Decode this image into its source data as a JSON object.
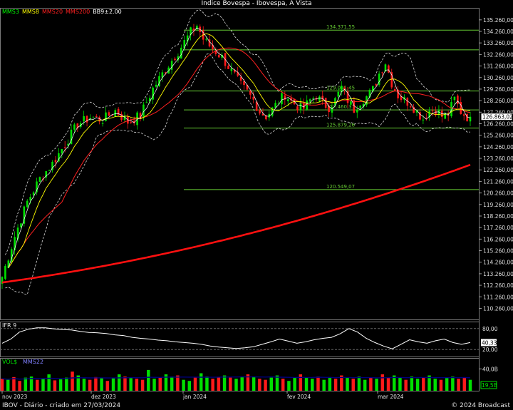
{
  "header": {
    "title": "Indice Bovespa - Ibovespa, A Vista"
  },
  "legend": [
    {
      "label": "MMS3",
      "color": "#00ff00"
    },
    {
      "label": "MMS8",
      "color": "#ffff00"
    },
    {
      "label": "MMS20",
      "color": "#ff2020"
    },
    {
      "label": "MMS200",
      "color": "#ff2020"
    },
    {
      "label": "BB9±2.00",
      "color": "#ffffff"
    }
  ],
  "footer": {
    "left": "IBOV - Diário - criado em 27/03/2024",
    "right": "© 2024 Broadcast"
  },
  "chart_data": {
    "type": "candlestick",
    "price_axis": {
      "ticks": [
        "135.260,00",
        "134.260,00",
        "133.260,00",
        "132.260,00",
        "131.260,00",
        "130.260,00",
        "129.260,00",
        "128.260,00",
        "127.260,00",
        "126.260,00",
        "125.260,00",
        "124.260,00",
        "123.260,00",
        "122.260,00",
        "121.260,00",
        "120.260,00",
        "119.260,00",
        "118.260,00",
        "117.260,00",
        "116.260,00",
        "115.260,00",
        "114.260,00",
        "113.260,00",
        "112.260,00",
        "111.260,00",
        "110.260,00"
      ],
      "range": [
        109300,
        136300
      ],
      "last_price": "126.863,02",
      "last_value": 126863
    },
    "levels": [
      {
        "label": "134.371,55",
        "value": 134371
      },
      {
        "label": "",
        "value": 132660
      },
      {
        "label": "129.091,45",
        "value": 129091
      },
      {
        "label": "127.460,31",
        "value": 127460
      },
      {
        "label": "125.879,26",
        "value": 125879
      },
      {
        "label": "120.549,07",
        "value": 120549
      }
    ],
    "x_labels": [
      "nov 2023",
      "dez 2023",
      "jan 2024",
      "fev 2024",
      "mar 2024"
    ],
    "close_path": [
      [
        0,
        113000
      ],
      [
        4,
        116500
      ],
      [
        8,
        119500
      ],
      [
        12,
        121500
      ],
      [
        16,
        122800
      ],
      [
        20,
        124500
      ],
      [
        24,
        126200
      ],
      [
        28,
        126800
      ],
      [
        32,
        126600
      ],
      [
        36,
        127400
      ],
      [
        40,
        126400
      ],
      [
        44,
        127000
      ],
      [
        48,
        129300
      ],
      [
        52,
        131000
      ],
      [
        56,
        132500
      ],
      [
        60,
        134200
      ],
      [
        62,
        134800
      ],
      [
        64,
        133600
      ],
      [
        66,
        133000
      ],
      [
        68,
        132500
      ],
      [
        70,
        132000
      ],
      [
        72,
        131200
      ],
      [
        74,
        130400
      ],
      [
        76,
        129600
      ],
      [
        78,
        129000
      ],
      [
        80,
        128300
      ],
      [
        82,
        127300
      ],
      [
        84,
        126900
      ],
      [
        86,
        127500
      ],
      [
        88,
        128200
      ],
      [
        90,
        128800
      ],
      [
        92,
        128200
      ],
      [
        94,
        127800
      ],
      [
        96,
        127600
      ],
      [
        98,
        128300
      ],
      [
        100,
        128700
      ],
      [
        102,
        128000
      ],
      [
        104,
        127700
      ],
      [
        106,
        128300
      ],
      [
        108,
        129400
      ],
      [
        110,
        128300
      ],
      [
        112,
        127500
      ],
      [
        114,
        128200
      ],
      [
        116,
        128600
      ],
      [
        118,
        129200
      ],
      [
        120,
        130600
      ],
      [
        122,
        131600
      ],
      [
        124,
        129800
      ],
      [
        126,
        128700
      ],
      [
        128,
        128300
      ],
      [
        130,
        128000
      ],
      [
        132,
        127300
      ],
      [
        134,
        126700
      ],
      [
        136,
        127400
      ],
      [
        138,
        127500
      ],
      [
        140,
        126900
      ],
      [
        142,
        127100
      ],
      [
        144,
        128400
      ],
      [
        146,
        127300
      ],
      [
        148,
        126863
      ]
    ],
    "ma200": {
      "name": "MMS200",
      "start": 112500,
      "end": 122700
    },
    "ifr": {
      "name": "IFR 9",
      "ticks": [
        "80,00",
        "20,00"
      ],
      "last": "40,33",
      "range": [
        0,
        100
      ],
      "values": [
        38,
        50,
        70,
        78,
        82,
        82,
        79,
        77,
        76,
        72,
        69,
        68,
        66,
        62,
        60,
        55,
        52,
        50,
        47,
        45,
        42,
        40,
        38,
        35,
        30,
        27,
        25,
        23,
        25,
        28,
        35,
        42,
        50,
        44,
        38,
        42,
        48,
        52,
        55,
        65,
        80,
        70,
        52,
        40,
        30,
        22,
        35,
        48,
        42,
        38,
        45,
        50,
        40,
        35,
        40
      ]
    },
    "volume": {
      "name": "VOL$",
      "overlay": "MMS22",
      "tick": "40,0B",
      "last": "19,5B",
      "range": [
        0,
        60
      ],
      "values": [
        22,
        20,
        25,
        18,
        24,
        26,
        20,
        22,
        30,
        19,
        21,
        24,
        35,
        28,
        22,
        20,
        25,
        24,
        18,
        23,
        30,
        26,
        24,
        22,
        20,
        38,
        22,
        24,
        30,
        26,
        28,
        20,
        18,
        24,
        32,
        26,
        22,
        25,
        28,
        24,
        22,
        25,
        30,
        26,
        22,
        20,
        24,
        28,
        22,
        18,
        24,
        30,
        24,
        22,
        26,
        20,
        25,
        22,
        28,
        24,
        22,
        26,
        20,
        24,
        22,
        30,
        24,
        28,
        24,
        20,
        26,
        22,
        24,
        28,
        22,
        20,
        24,
        26,
        22,
        24,
        20
      ]
    }
  }
}
